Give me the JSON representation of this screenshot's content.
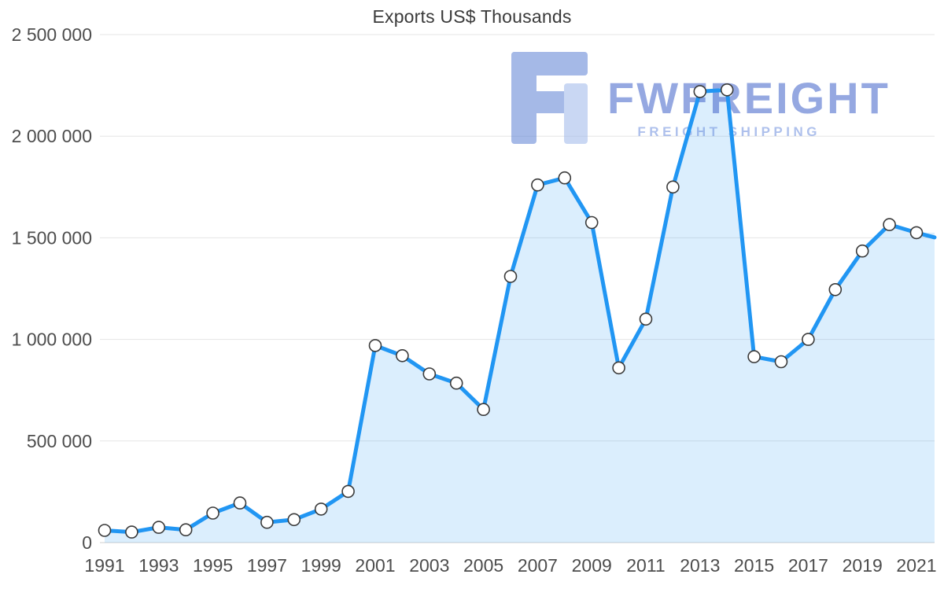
{
  "chart_data": {
    "type": "area",
    "title": "Exports US$ Thousands",
    "x": [
      1991,
      1992,
      1993,
      1994,
      1995,
      1996,
      1997,
      1998,
      1999,
      2000,
      2001,
      2002,
      2003,
      2004,
      2005,
      2006,
      2007,
      2008,
      2009,
      2010,
      2011,
      2012,
      2013,
      2014,
      2015,
      2016,
      2017,
      2018,
      2019,
      2020,
      2021
    ],
    "values": [
      60000,
      52000,
      75000,
      63000,
      145000,
      195000,
      100000,
      113000,
      165000,
      252000,
      970000,
      920000,
      830000,
      785000,
      655000,
      1310000,
      1760000,
      1795000,
      1575000,
      860000,
      1100000,
      1750000,
      2220000,
      2228000,
      915000,
      890000,
      1000000,
      1245000,
      1435000,
      1565000,
      1525000
    ],
    "ylim": [
      0,
      2500000
    ],
    "ytick_values": [
      0,
      500000,
      1000000,
      1500000,
      2000000,
      2500000
    ],
    "ytick_labels": [
      "0",
      "500 000",
      "1 000 000",
      "1 500 000",
      "2 000 000",
      "2 500 000"
    ],
    "xtick_labels": [
      "1991",
      "1993",
      "1995",
      "1997",
      "1999",
      "2001",
      "2003",
      "2005",
      "2007",
      "2009",
      "2011",
      "2013",
      "2015",
      "2017",
      "2019",
      "2021"
    ],
    "grid": true,
    "legend": "none",
    "line_color": "#2196f3",
    "fill_color": "#dcebfb",
    "marker_fill": "#ffffff",
    "marker_stroke": "#3a3a3a",
    "grid_color": "#e5e5e5",
    "axis_text_color": "#4d4d4d"
  },
  "watermark": {
    "brand": "FWFREIGHT",
    "tagline": "FREIGHT SHIPPING",
    "logo_letter": "F",
    "brand_color": "#3f62c9",
    "tagline_color": "#6c8edd",
    "logo_color": "#5d80d5",
    "logo_accent_color": "#9db7ea"
  }
}
